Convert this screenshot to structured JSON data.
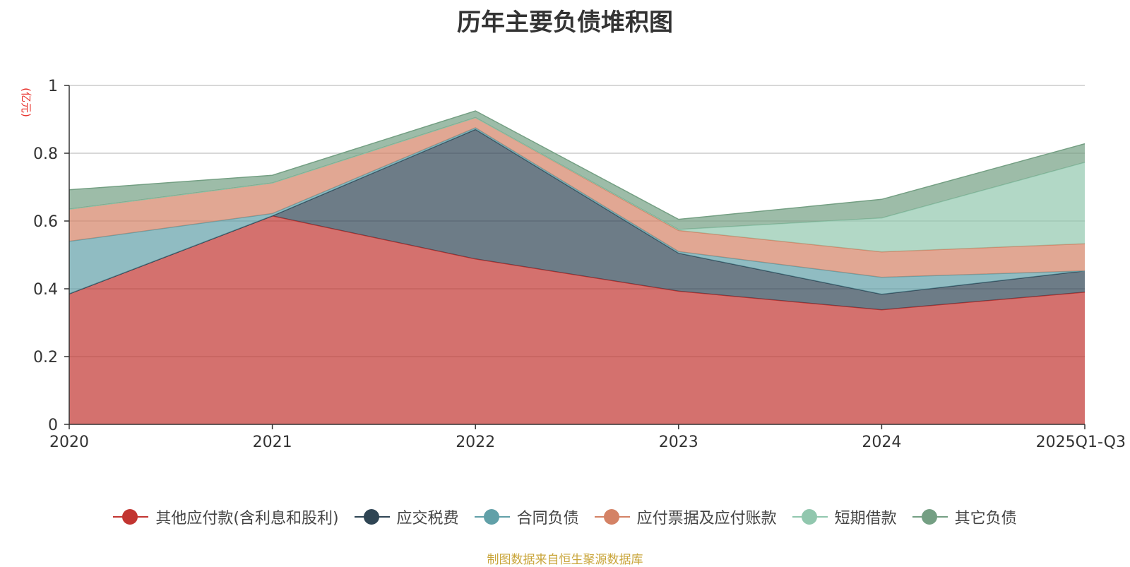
{
  "chart_data": {
    "type": "area",
    "stacked": true,
    "title": "历年主要负债堆积图",
    "ylabel": "(亿元)",
    "xlabel": "",
    "categories": [
      "2020",
      "2021",
      "2022",
      "2023",
      "2024",
      "2025Q1-Q3"
    ],
    "ylim": [
      0,
      1
    ],
    "yticks": [
      "0",
      "0.2",
      "0.4",
      "0.6",
      "0.8",
      "1"
    ],
    "yticks_values": [
      0,
      0.2,
      0.4,
      0.6,
      0.8,
      1
    ],
    "grid": true,
    "legend_position": "bottom",
    "series": [
      {
        "name": "其他应付款(含利息和股利)",
        "color": "#c23531",
        "values": [
          0.385,
          0.615,
          0.488,
          0.393,
          0.338,
          0.39
        ]
      },
      {
        "name": "应交税费",
        "color": "#2f4554",
        "values": [
          0.0,
          0.0,
          0.382,
          0.112,
          0.046,
          0.063
        ]
      },
      {
        "name": "合同负债",
        "color": "#61a0a8",
        "values": [
          0.155,
          0.007,
          0.005,
          0.005,
          0.05,
          0.0
        ]
      },
      {
        "name": "应付票据及应付账款",
        "color": "#d48265",
        "values": [
          0.095,
          0.09,
          0.03,
          0.062,
          0.075,
          0.08
        ]
      },
      {
        "name": "短期借款",
        "color": "#91c7ae",
        "values": [
          0.0,
          0.0,
          0.0,
          0.003,
          0.1,
          0.24
        ]
      },
      {
        "name": "其它负债",
        "color": "#749f83",
        "values": [
          0.057,
          0.023,
          0.02,
          0.03,
          0.055,
          0.055
        ]
      }
    ]
  },
  "footer": "制图数据来自恒生聚源数据库"
}
